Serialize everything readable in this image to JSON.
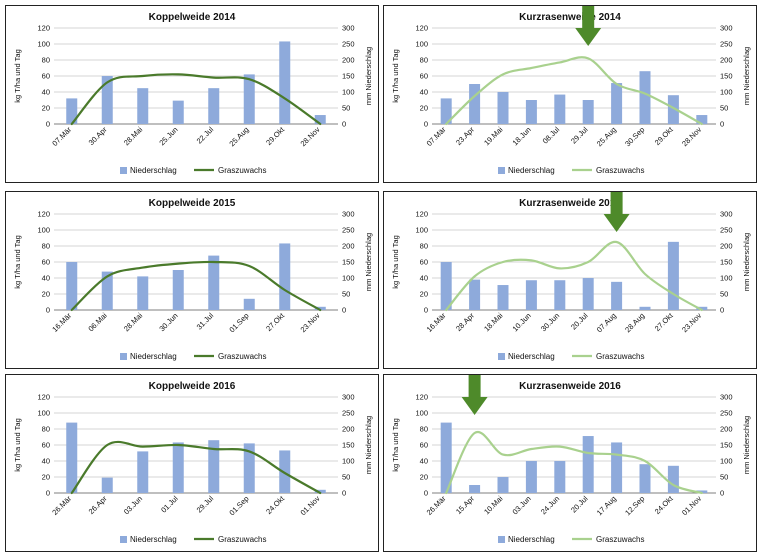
{
  "chart_data": [
    {
      "type": "bar",
      "title": "Koppelweide 2014",
      "categories": [
        "07.Mär",
        "30.Apr",
        "28.Mai",
        "25.Jun",
        "22.Jul",
        "25.Aug",
        "29.Okt",
        "28.Nov"
      ],
      "ylabel_left": "kg T/ha und Tag",
      "ylabel_right": "mm Niederschlag",
      "ylim_left": [
        0,
        120
      ],
      "ylim_right": [
        0,
        300
      ],
      "series": [
        {
          "name": "Niederschlag",
          "axis": "right",
          "type": "bar",
          "color": "#8eaadb",
          "values": [
            80,
            150,
            112,
            73,
            112,
            155,
            258,
            28
          ]
        },
        {
          "name": "Graszuwachs",
          "axis": "left",
          "type": "line",
          "color": "#4a7a2b",
          "values": [
            0,
            52,
            60,
            62,
            58,
            56,
            32,
            0
          ]
        }
      ],
      "arrow_at": null
    },
    {
      "type": "bar",
      "title": "Kurzrasenweide 2014",
      "categories": [
        "07.Mär",
        "23.Apr",
        "19.Mai",
        "18.Jun",
        "08.Jul",
        "29.Jul",
        "25.Aug",
        "30.Sep",
        "29.Okt",
        "28.Nov"
      ],
      "ylabel_left": "kg T/ha und Tag",
      "ylabel_right": "mm Niederschlag",
      "ylim_left": [
        0,
        120
      ],
      "ylim_right": [
        0,
        300
      ],
      "series": [
        {
          "name": "Niederschlag",
          "axis": "right",
          "type": "bar",
          "color": "#8eaadb",
          "values": [
            80,
            125,
            100,
            75,
            92,
            75,
            128,
            165,
            90,
            28
          ]
        },
        {
          "name": "Graszuwachs",
          "axis": "left",
          "type": "line",
          "color": "#a9d18e",
          "values": [
            0,
            35,
            62,
            70,
            77,
            82,
            50,
            38,
            20,
            0
          ]
        }
      ],
      "arrow_at": 5
    },
    {
      "type": "bar",
      "title": "Koppelweide 2015",
      "categories": [
        "16.Mär",
        "06.Mai",
        "28.Mai",
        "30.Jun",
        "31.Jul",
        "01.Sep",
        "27.Okt",
        "23.Nov"
      ],
      "ylabel_left": "kg T/ha und Tag",
      "ylabel_right": "mm Niederschlag",
      "ylim_left": [
        0,
        120
      ],
      "ylim_right": [
        0,
        300
      ],
      "series": [
        {
          "name": "Niederschlag",
          "axis": "right",
          "type": "bar",
          "color": "#8eaadb",
          "values": [
            150,
            120,
            105,
            125,
            170,
            35,
            208,
            10
          ]
        },
        {
          "name": "Graszuwachs",
          "axis": "left",
          "type": "line",
          "color": "#4a7a2b",
          "values": [
            0,
            42,
            53,
            58,
            60,
            55,
            25,
            0
          ]
        }
      ],
      "arrow_at": null
    },
    {
      "type": "bar",
      "title": "Kurzrasenweide 2015",
      "categories": [
        "16.Mär",
        "28.Apr",
        "18.Mai",
        "10.Jun",
        "30.Jun",
        "20.Jul",
        "07.Aug",
        "28.Aug",
        "27.Okt",
        "23.Nov"
      ],
      "ylabel_left": "kg T/ha und Tag",
      "ylabel_right": "mm Niederschlag",
      "ylim_left": [
        0,
        120
      ],
      "ylim_right": [
        0,
        300
      ],
      "series": [
        {
          "name": "Niederschlag",
          "axis": "right",
          "type": "bar",
          "color": "#8eaadb",
          "values": [
            150,
            95,
            78,
            93,
            93,
            100,
            88,
            10,
            213,
            10
          ]
        },
        {
          "name": "Graszuwachs",
          "axis": "left",
          "type": "line",
          "color": "#a9d18e",
          "values": [
            0,
            42,
            60,
            62,
            52,
            60,
            85,
            45,
            20,
            0
          ]
        }
      ],
      "arrow_at": 6
    },
    {
      "type": "bar",
      "title": "Koppelweide 2016",
      "categories": [
        "26.Mär",
        "26.Apr",
        "03.Jun",
        "01.Jul",
        "29.Jul",
        "01.Sep",
        "24.Okt",
        "01.Nov"
      ],
      "ylabel_left": "kg T/ha und Tag",
      "ylabel_right": "mm Niederschlag",
      "ylim_left": [
        0,
        120
      ],
      "ylim_right": [
        0,
        300
      ],
      "series": [
        {
          "name": "Niederschlag",
          "axis": "right",
          "type": "bar",
          "color": "#8eaadb",
          "values": [
            220,
            48,
            130,
            158,
            165,
            155,
            133,
            10
          ]
        },
        {
          "name": "Graszuwachs",
          "axis": "left",
          "type": "line",
          "color": "#4a7a2b",
          "values": [
            0,
            60,
            58,
            60,
            55,
            52,
            25,
            0
          ]
        }
      ],
      "arrow_at": null
    },
    {
      "type": "bar",
      "title": "Kurzrasenweide 2016",
      "categories": [
        "26.Mär",
        "15.Apr",
        "10.Mai",
        "03.Jun",
        "24.Jun",
        "20.Jul",
        "17.Aug",
        "12.Sep",
        "24.Okt",
        "01.Nov"
      ],
      "ylabel_left": "kg T/ha und Tag",
      "ylabel_right": "mm Niederschlag",
      "ylim_left": [
        0,
        120
      ],
      "ylim_right": [
        0,
        300
      ],
      "series": [
        {
          "name": "Niederschlag",
          "axis": "right",
          "type": "bar",
          "color": "#8eaadb",
          "values": [
            220,
            25,
            50,
            100,
            100,
            178,
            158,
            90,
            85,
            8
          ]
        },
        {
          "name": "Graszuwachs",
          "axis": "left",
          "type": "line",
          "color": "#a9d18e",
          "values": [
            0,
            75,
            48,
            55,
            58,
            50,
            48,
            40,
            10,
            0
          ]
        }
      ],
      "arrow_at": 1
    }
  ],
  "arrow_color": "#4e8a2a"
}
